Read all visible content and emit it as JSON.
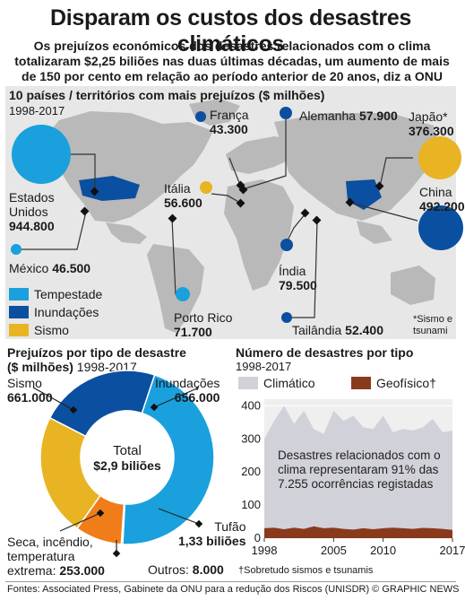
{
  "title": "Disparam os custos dos desastres climáticos",
  "subtitle": "Os prejuízos económicos dos desastres relacionados com o clima totalizaram $2,25 biliões nas duas últimas décadas, um aumento de mais de 150 por cento em relação ao período anterior de 20 anos, diz a ONU",
  "colors": {
    "tempestade": "#1aa0dd",
    "inundacoes": "#0b4fa0",
    "sismo": "#e8b423",
    "outros": "#f07d1a",
    "climatico": "#d1d1d9",
    "geofisico": "#8a3a1c"
  },
  "map_section": {
    "heading": "10 países / territórios com mais prejuízos ($ milhões)",
    "period": "1998-2017",
    "note": "*Sismo e tsunami",
    "legend": [
      {
        "label": "Tempestade",
        "color": "#1aa0dd"
      },
      {
        "label": "Inundações",
        "color": "#0b4fa0"
      },
      {
        "label": "Sismo",
        "color": "#e8b423"
      }
    ]
  },
  "countries": [
    {
      "name": "Estados Unidos",
      "value": "944.800",
      "amount": 944800,
      "type": "Tempestade"
    },
    {
      "name": "México",
      "value": "46.500",
      "amount": 46500,
      "type": "Tempestade"
    },
    {
      "name": "Porto Rico",
      "value": "71.700",
      "amount": 71700,
      "type": "Tempestade"
    },
    {
      "name": "França",
      "value": "43.300",
      "amount": 43300,
      "type": "Inundações"
    },
    {
      "name": "Alemanha",
      "value": "57.900",
      "amount": 57900,
      "type": "Inundações"
    },
    {
      "name": "Itália",
      "value": "56.600",
      "amount": 56600,
      "type": "Sismo"
    },
    {
      "name": "Japão*",
      "value": "376.300",
      "amount": 376300,
      "type": "Sismo"
    },
    {
      "name": "China",
      "value": "492.200",
      "amount": 492200,
      "type": "Inundações"
    },
    {
      "name": "Índia",
      "value": "79.500",
      "amount": 79500,
      "type": "Inundações"
    },
    {
      "name": "Tailândia",
      "value": "52.400",
      "amount": 52400,
      "type": "Inundações"
    }
  ],
  "donut_section": {
    "heading": "Prejuízos por tipo de desastre",
    "heading_unit": "($ milhões)",
    "period": "1998-2017",
    "center_label": "Total",
    "center_value": "$2,9 biliões"
  },
  "chart_data": [
    {
      "type": "pie",
      "title": "Prejuízos por tipo de desastre ($ milhões) 1998-2017",
      "slices": [
        {
          "label": "Tufão",
          "value": 1330000,
          "display": "1,33 biliões",
          "color": "#1aa0dd"
        },
        {
          "label": "Outros:",
          "value": 8000,
          "display": "8.000",
          "color": "#555555"
        },
        {
          "label": "Seca, incêndio, temperatura extrema:",
          "value": 253000,
          "display": "253.000",
          "color": "#f07d1a"
        },
        {
          "label": "Sismo",
          "value": 661000,
          "display": "661.000",
          "color": "#e8b423"
        },
        {
          "label": "Inundações",
          "value": 656000,
          "display": "656.000",
          "color": "#0b4fa0"
        }
      ]
    },
    {
      "type": "area",
      "title": "Número de desastres por tipo",
      "subtitle": "1998-2017",
      "x": [
        1998,
        1999,
        2000,
        2001,
        2002,
        2003,
        2004,
        2005,
        2006,
        2007,
        2008,
        2009,
        2010,
        2011,
        2012,
        2013,
        2014,
        2015,
        2016,
        2017
      ],
      "series": [
        {
          "name": "Climático",
          "color": "#d1d1d9",
          "values": [
            300,
            355,
            400,
            345,
            385,
            330,
            315,
            385,
            355,
            370,
            335,
            330,
            370,
            320,
            330,
            325,
            335,
            360,
            320,
            325
          ]
        },
        {
          "name": "Geofísico†",
          "color": "#8a3a1c",
          "values": [
            30,
            32,
            27,
            32,
            28,
            36,
            30,
            32,
            28,
            26,
            30,
            27,
            30,
            32,
            30,
            28,
            31,
            30,
            28,
            25
          ]
        }
      ],
      "xticks": [
        "1998",
        "2005",
        "2010",
        "2017"
      ],
      "yticks": [
        "0",
        "100",
        "200",
        "300",
        "400"
      ],
      "ylim": [
        0,
        420
      ],
      "annotation": "Desastres relacionados com o clima representaram 91% das 7.255 ocorrências registadas",
      "footnote": "†Sobretudo sismos e tsunamis"
    }
  ],
  "footer": "Fontes: Associated Press, Gabinete da ONU para a redução dos Riscos (UNISDR) © GRAPHIC NEWS"
}
